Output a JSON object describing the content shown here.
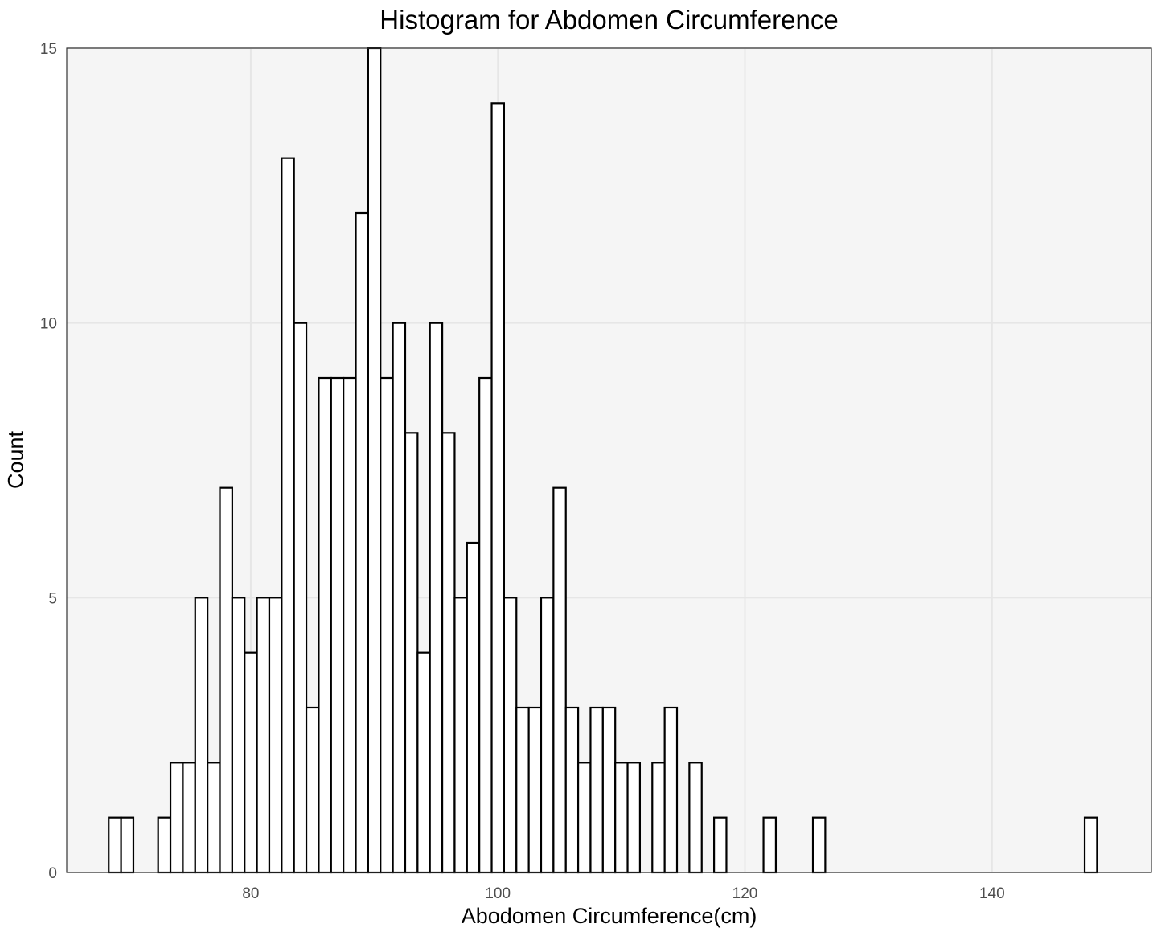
{
  "chart_data": {
    "type": "bar",
    "title": "Histogram for Abdomen Circumference",
    "xlabel": "Abodomen Circumference(cm)",
    "ylabel": "Count",
    "xlim": [
      65.1,
      152.9
    ],
    "ylim": [
      0,
      15
    ],
    "bin_width": 1,
    "x_ticks": [
      80,
      100,
      120,
      140
    ],
    "y_ticks": [
      0,
      5,
      10,
      15
    ],
    "grid": true,
    "bar_fill": "#ffffff",
    "bar_stroke": "#000000",
    "panel_background": "#f5f5f5",
    "grid_color": "#e6e6e6",
    "bins": [
      {
        "x": 69,
        "count": 1
      },
      {
        "x": 70,
        "count": 1
      },
      {
        "x": 73,
        "count": 1
      },
      {
        "x": 74,
        "count": 2
      },
      {
        "x": 75,
        "count": 2
      },
      {
        "x": 76,
        "count": 5
      },
      {
        "x": 77,
        "count": 2
      },
      {
        "x": 78,
        "count": 7
      },
      {
        "x": 79,
        "count": 5
      },
      {
        "x": 80,
        "count": 4
      },
      {
        "x": 81,
        "count": 5
      },
      {
        "x": 82,
        "count": 5
      },
      {
        "x": 83,
        "count": 13
      },
      {
        "x": 84,
        "count": 10
      },
      {
        "x": 85,
        "count": 3
      },
      {
        "x": 86,
        "count": 9
      },
      {
        "x": 87,
        "count": 9
      },
      {
        "x": 88,
        "count": 9
      },
      {
        "x": 89,
        "count": 12
      },
      {
        "x": 90,
        "count": 15
      },
      {
        "x": 91,
        "count": 9
      },
      {
        "x": 92,
        "count": 10
      },
      {
        "x": 93,
        "count": 8
      },
      {
        "x": 94,
        "count": 4
      },
      {
        "x": 95,
        "count": 10
      },
      {
        "x": 96,
        "count": 8
      },
      {
        "x": 97,
        "count": 5
      },
      {
        "x": 98,
        "count": 6
      },
      {
        "x": 99,
        "count": 9
      },
      {
        "x": 100,
        "count": 14
      },
      {
        "x": 101,
        "count": 5
      },
      {
        "x": 102,
        "count": 3
      },
      {
        "x": 103,
        "count": 3
      },
      {
        "x": 104,
        "count": 5
      },
      {
        "x": 105,
        "count": 7
      },
      {
        "x": 106,
        "count": 3
      },
      {
        "x": 107,
        "count": 2
      },
      {
        "x": 108,
        "count": 3
      },
      {
        "x": 109,
        "count": 3
      },
      {
        "x": 110,
        "count": 2
      },
      {
        "x": 111,
        "count": 2
      },
      {
        "x": 113,
        "count": 2
      },
      {
        "x": 114,
        "count": 3
      },
      {
        "x": 116,
        "count": 2
      },
      {
        "x": 118,
        "count": 1
      },
      {
        "x": 122,
        "count": 1
      },
      {
        "x": 126,
        "count": 1
      },
      {
        "x": 148,
        "count": 1
      }
    ]
  }
}
